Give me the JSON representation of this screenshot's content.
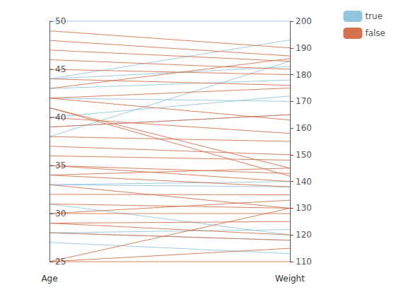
{
  "chart_data": {
    "type": "parallel",
    "categories": [
      "Age",
      "Weight"
    ],
    "series": [
      {
        "name": "true",
        "color": "#92c5de",
        "values": [
          [
            50,
            200
          ],
          [
            44,
            193
          ],
          [
            44,
            183
          ],
          [
            43,
            178
          ],
          [
            42,
            170
          ],
          [
            40,
            172
          ],
          [
            39,
            165
          ],
          [
            38,
            185
          ],
          [
            33,
            140
          ],
          [
            33,
            138
          ],
          [
            31,
            120
          ],
          [
            28,
            122
          ],
          [
            28,
            118
          ],
          [
            27,
            113
          ]
        ]
      },
      {
        "name": "false",
        "color": "#d6714e",
        "values": [
          [
            49,
            190
          ],
          [
            48,
            187
          ],
          [
            47,
            185
          ],
          [
            46,
            182
          ],
          [
            45,
            180
          ],
          [
            44,
            176
          ],
          [
            43,
            186
          ],
          [
            42,
            175
          ],
          [
            42,
            163
          ],
          [
            41,
            145
          ],
          [
            41,
            142
          ],
          [
            40,
            158
          ],
          [
            39,
            165
          ],
          [
            38,
            155
          ],
          [
            37,
            150
          ],
          [
            36,
            148
          ],
          [
            35,
            143
          ],
          [
            35,
            140
          ],
          [
            34,
            145
          ],
          [
            34,
            138
          ],
          [
            33,
            130
          ],
          [
            32,
            135
          ],
          [
            31,
            130
          ],
          [
            30,
            133
          ],
          [
            30,
            128
          ],
          [
            29,
            125
          ],
          [
            29,
            120
          ],
          [
            28,
            118
          ],
          [
            25,
            115
          ],
          [
            25,
            110
          ],
          [
            25,
            130
          ]
        ]
      }
    ],
    "ylim": [
      25,
      50
    ],
    "yticks": [
      25,
      30,
      35,
      40,
      45,
      50
    ],
    "y2lim": [
      110,
      200
    ],
    "y2ticks": [
      110,
      120,
      130,
      140,
      150,
      160,
      170,
      180,
      190,
      200
    ],
    "grid": false,
    "legend": "upper right"
  }
}
